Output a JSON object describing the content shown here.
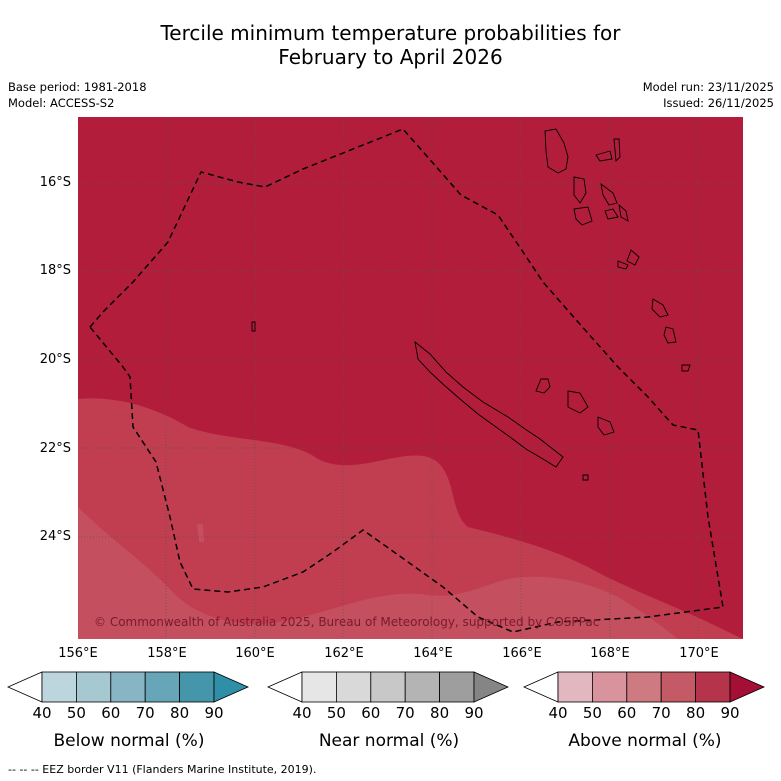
{
  "title": {
    "line1": "Tercile minimum temperature probabilities for",
    "line2": "February to April 2026"
  },
  "meta": {
    "base_period": "Base period: 1981-2018",
    "model": "Model: ACCESS-S2",
    "model_run": "Model run: 23/11/2025",
    "issued": "Issued: 26/11/2025"
  },
  "map": {
    "lon_range_deg": [
      156,
      171
    ],
    "lat_range_deg": [
      -26.2,
      -14.4
    ],
    "lat_labels": [
      "16°S",
      "18°S",
      "20°S",
      "22°S",
      "24°S"
    ],
    "lon_labels": [
      "156°E",
      "158°E",
      "160°E",
      "162°E",
      "164°E",
      "166°E",
      "168°E",
      "170°E"
    ],
    "copyright": "© Commonwealth of Australia 2025, Bureau of Meteorology, supported by COSPPac",
    "colors": {
      "above_80_90": "#b31d3c",
      "above_70_80": "#c13d50",
      "above_60_70": "#c44f5e",
      "grid": "#555555",
      "eez": "#000000"
    }
  },
  "legends": [
    {
      "name": "below",
      "title": "Below normal (%)",
      "ticks": [
        "40",
        "50",
        "60",
        "70",
        "80",
        "90"
      ],
      "colors": [
        "#ffffff",
        "#bdd5dd",
        "#a6c8d1",
        "#87b5c3",
        "#66a6b8",
        "#4596aa",
        "#2e8fa6"
      ]
    },
    {
      "name": "near",
      "title": "Near normal (%)",
      "ticks": [
        "40",
        "50",
        "60",
        "70",
        "80",
        "90"
      ],
      "colors": [
        "#ffffff",
        "#e6e6e6",
        "#d9d9d9",
        "#c8c8c8",
        "#b4b4b4",
        "#9e9e9e",
        "#858585"
      ]
    },
    {
      "name": "above",
      "title": "Above normal (%)",
      "ticks": [
        "40",
        "50",
        "60",
        "70",
        "80",
        "90"
      ],
      "colors": [
        "#ffffff",
        "#e3b7bf",
        "#d9939d",
        "#cd7a80",
        "#c45a66",
        "#b6344b",
        "#a50e35"
      ]
    }
  ],
  "footer": "--  --  -- EEZ border V11 (Flanders Marine Institute, 2019)."
}
